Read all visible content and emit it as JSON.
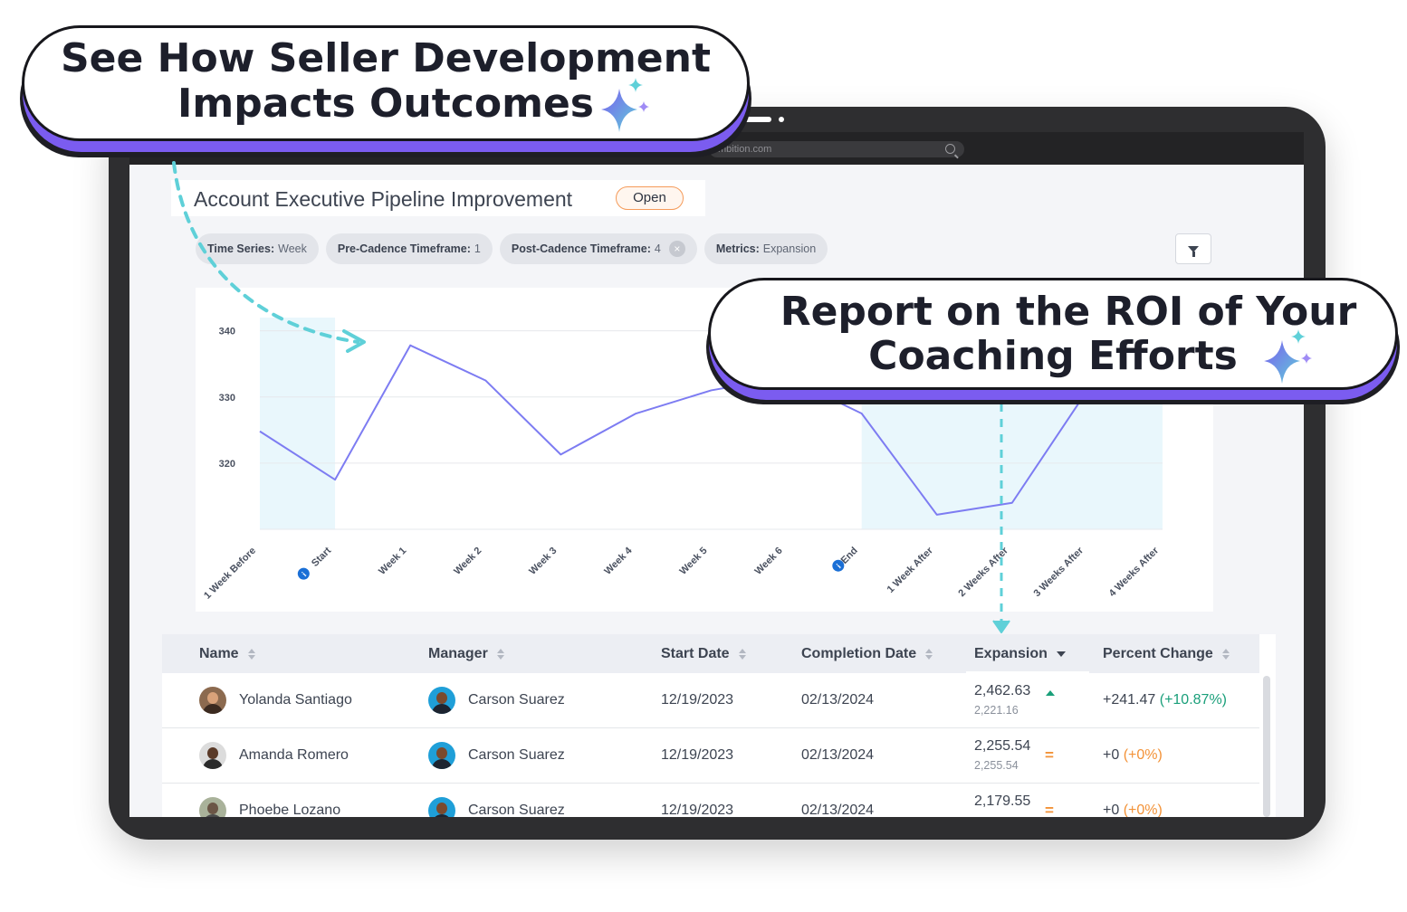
{
  "callouts": {
    "top": {
      "line1": "See How Seller Development",
      "line2": "Impacts Outcomes"
    },
    "right": {
      "line1": "Report on the ROI of Your",
      "line2": "Coaching Efforts"
    }
  },
  "browser": {
    "url": "mbition.com",
    "icon": "search-icon"
  },
  "page": {
    "title": "Account Executive Pipeline Improvement",
    "status": "Open"
  },
  "filters": [
    {
      "key": "Time Series:",
      "value": "Week"
    },
    {
      "key": "Pre-Cadence Timeframe:",
      "value": "1"
    },
    {
      "key": "Post-Cadence Timeframe:",
      "value": "4",
      "removable": true
    },
    {
      "key": "Metrics:",
      "value": "Expansion"
    }
  ],
  "filter_button": {
    "icon": "funnel-icon"
  },
  "chart_data": {
    "type": "line",
    "categories": [
      "1 Week Before",
      "Start",
      "Week 1",
      "Week 2",
      "Week 3",
      "Week 4",
      "Week 5",
      "Week 6",
      "End",
      "1 Week After",
      "2 Weeks After",
      "3 Weeks After",
      "4 Weeks After"
    ],
    "series": [
      {
        "values": [
          324.8,
          317.5,
          337.8,
          332.5,
          321.3,
          327.5,
          331.0,
          333.0,
          327.5,
          312.2,
          314.0,
          331.0,
          337.0
        ],
        "color": "#7d7cf2"
      }
    ],
    "marked_categories": [
      "Start",
      "End"
    ],
    "yticks": [
      320,
      330,
      340
    ],
    "ylim": [
      310,
      342
    ],
    "shaded_ranges": [
      [
        "1 Week Before",
        "Start"
      ],
      [
        "End",
        "4 Weeks After"
      ]
    ],
    "grid": true
  },
  "table": {
    "columns": [
      "Name",
      "Manager",
      "Start Date",
      "Completion Date",
      "Expansion",
      "Percent Change"
    ],
    "sorted_column": "Expansion",
    "rows": [
      {
        "name": "Yolanda Santiago",
        "manager": "Carson Suarez",
        "start": "12/19/2023",
        "completion": "02/13/2024",
        "expansion": "2,462.63",
        "expansion_prev": "2,221.16",
        "trend": "up",
        "change": "+241.47",
        "change_pct": "(+10.87%)"
      },
      {
        "name": "Amanda Romero",
        "manager": "Carson Suarez",
        "start": "12/19/2023",
        "completion": "02/13/2024",
        "expansion": "2,255.54",
        "expansion_prev": "2,255.54",
        "trend": "flat",
        "change": "+0",
        "change_pct": "(+0%)"
      },
      {
        "name": "Phoebe Lozano",
        "manager": "Carson Suarez",
        "start": "12/19/2023",
        "completion": "02/13/2024",
        "expansion": "2,179.55",
        "expansion_prev": "",
        "trend": "flat",
        "change": "+0",
        "change_pct": "(+0%)"
      }
    ]
  },
  "colors": {
    "accent": "#7b5cf0",
    "line": "#7d7cf2",
    "shade": "#e9f7fc",
    "arrow": "#5fd0d8",
    "positive": "#1a9f7a",
    "neutral": "#f39237",
    "info": "#1a6fd6"
  }
}
